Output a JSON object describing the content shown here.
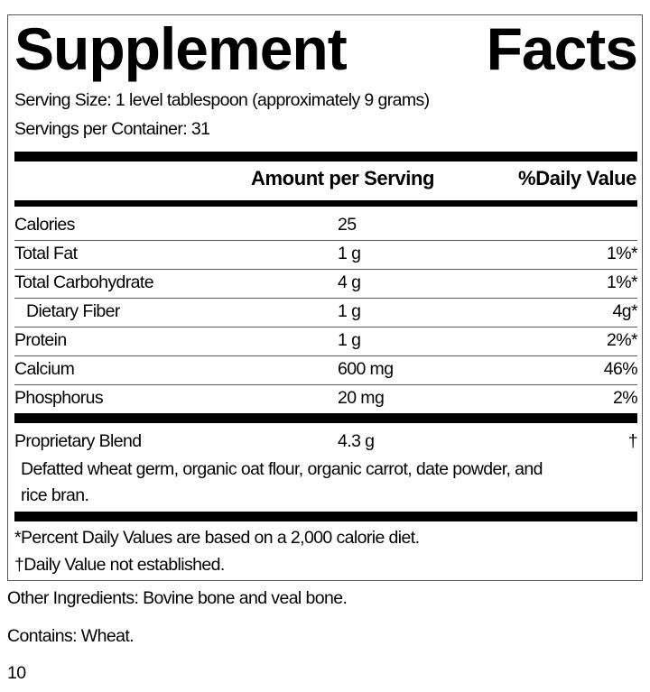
{
  "title_words": [
    "Supplement",
    "Facts"
  ],
  "serving_size": "Serving Size: 1 level tablespoon (approximately 9 grams)",
  "servings_per_container": "Servings per Container: 31",
  "header": {
    "amount": "Amount per Serving",
    "dv": "%Daily Value"
  },
  "rows": [
    {
      "name": "Calories",
      "amount": "25",
      "dv": ""
    },
    {
      "name": "Total Fat",
      "amount": "1 g",
      "dv": "1%*"
    },
    {
      "name": "Total Carbohydrate",
      "amount": "4 g",
      "dv": "1%*"
    },
    {
      "name": "Dietary Fiber",
      "amount": "1 g",
      "dv": "4g*"
    },
    {
      "name": "Protein",
      "amount": "1 g",
      "dv": "2%*"
    },
    {
      "name": "Calcium",
      "amount": "600 mg",
      "dv": "46%"
    },
    {
      "name": "Phosphorus",
      "amount": "20 mg",
      "dv": "2%"
    }
  ],
  "blend": {
    "name": "Proprietary Blend",
    "amount": "4.3 g",
    "dv": "†",
    "ingredients_line1": "Defatted wheat germ, organic oat flour, organic carrot, date powder, and",
    "ingredients_line2": "rice bran."
  },
  "footnotes": [
    "*Percent Daily Values are based on a 2,000 calorie diet.",
    "†Daily Value not established."
  ],
  "other_ingredients": "Other Ingredients: Bovine bone and veal bone.",
  "contains": "Contains: Wheat.",
  "page_number": "10"
}
